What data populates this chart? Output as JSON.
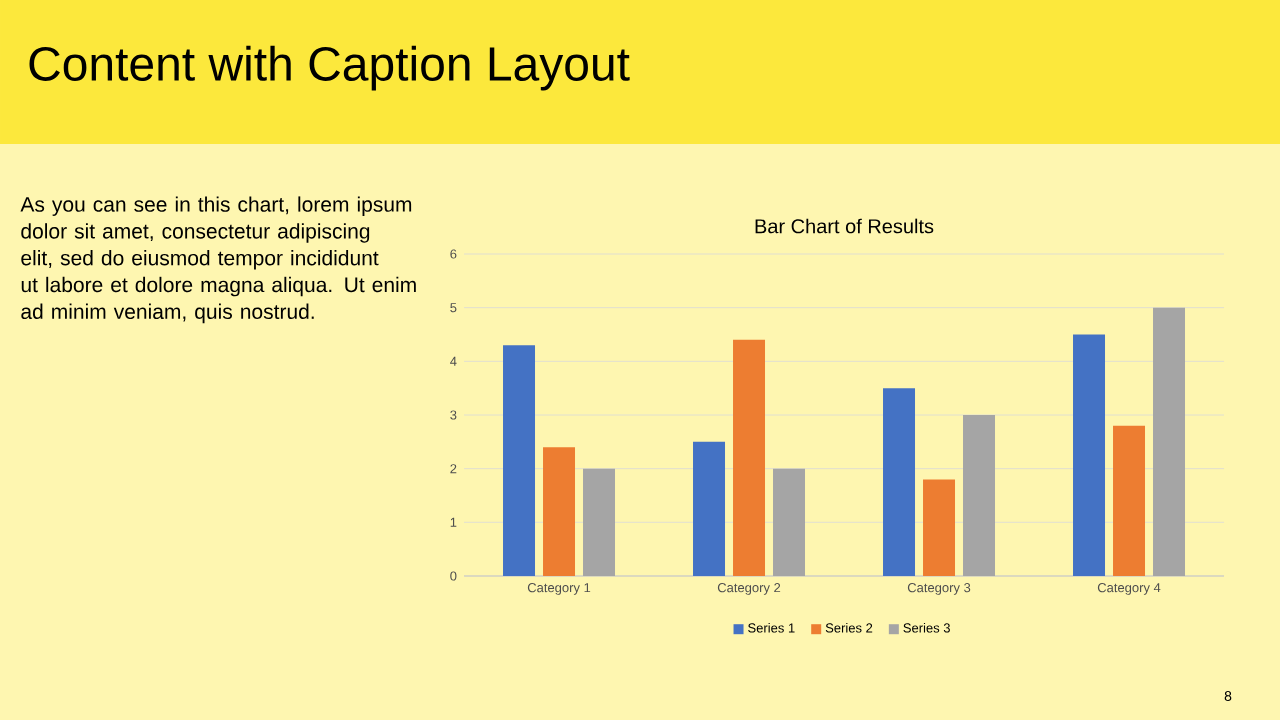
{
  "chart_data": {
    "type": "bar",
    "title": "Content with Caption Layout",
    "subtitle": "Bar Chart of Results",
    "annotations": [
      "As you can see in this chart, lorem ipsum dolor sit amet, consectetur adipiscing elit, sed do eiusmod tempor incididunt ut labore et dolore magna aliqua. Ut enim ad minim veniam, quis nostrud.",
      "8"
    ],
    "categories": [
      "Category 1",
      "Category 2",
      "Category 3",
      "Category 4"
    ],
    "series": [
      {
        "name": "Series 1",
        "color": "#4472c4",
        "values": [
          4.3,
          2.5,
          3.5,
          4.5
        ]
      },
      {
        "name": "Series 2",
        "color": "#ed7d31",
        "values": [
          2.4,
          4.4,
          1.8,
          2.8
        ]
      },
      {
        "name": "Series 3",
        "color": "#a5a5a5",
        "values": [
          2,
          2,
          3,
          5
        ]
      }
    ],
    "ylim": [
      0,
      6
    ],
    "yticks": [
      0,
      1,
      2,
      3,
      4,
      5,
      6
    ],
    "grid": "y",
    "legend": "bottom"
  }
}
